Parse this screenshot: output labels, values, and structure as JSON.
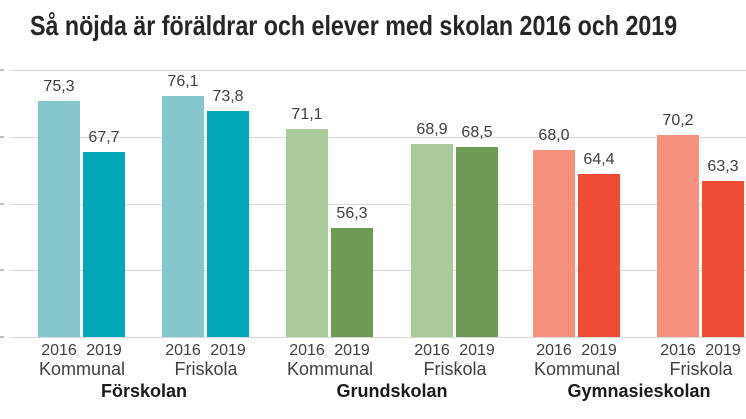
{
  "title": "Så nöjda är föräldrar och elever med skolan 2016 och 2019",
  "chart_data": {
    "type": "bar",
    "title": "Så nöjda är föräldrar och elever med skolan 2016 och 2019",
    "xlabel": "",
    "ylabel": "",
    "ylim": [
      40,
      80
    ],
    "gridline_step": 10,
    "grid": true,
    "legend_position": "none",
    "y_axis_tick_values": [
      40,
      50,
      60,
      70,
      80
    ],
    "series_labels": [
      "2016",
      "2019"
    ],
    "groups": [
      {
        "label": "Förskolan",
        "colors": [
          "#85C6CD",
          "#00A7B8"
        ],
        "subgroups": [
          {
            "label": "Kommunal",
            "values": [
              75.3,
              67.7
            ],
            "value_labels": [
              "75,3",
              "67,7"
            ]
          },
          {
            "label": "Friskola",
            "values": [
              76.1,
              73.8
            ],
            "value_labels": [
              "76,1",
              "73,8"
            ]
          }
        ]
      },
      {
        "label": "Grundskolan",
        "colors": [
          "#A9CB9B",
          "#6D9B53"
        ],
        "subgroups": [
          {
            "label": "Kommunal",
            "values": [
              71.1,
              56.3
            ],
            "value_labels": [
              "71,1",
              "56,3"
            ]
          },
          {
            "label": "Friskola",
            "values": [
              68.9,
              68.5
            ],
            "value_labels": [
              "68,9",
              "68,5"
            ]
          }
        ]
      },
      {
        "label": "Gymnasieskolan",
        "colors": [
          "#F5917E",
          "#EF4B37"
        ],
        "subgroups": [
          {
            "label": "Kommunal",
            "values": [
              68.0,
              64.4
            ],
            "value_labels": [
              "68,0",
              "64,4"
            ]
          },
          {
            "label": "Friskola",
            "values": [
              70.2,
              63.3
            ],
            "value_labels": [
              "70,2",
              "63,3"
            ]
          }
        ]
      }
    ],
    "style_colors": {
      "background": "#FFFFFF",
      "gridline": "#D9D9D9",
      "axis_tick": "#BFBFBF",
      "title_text": "#262626",
      "value_label_text": "#404040",
      "category_label_text": "#404040",
      "group_label_text": "#1A1A1A"
    }
  }
}
